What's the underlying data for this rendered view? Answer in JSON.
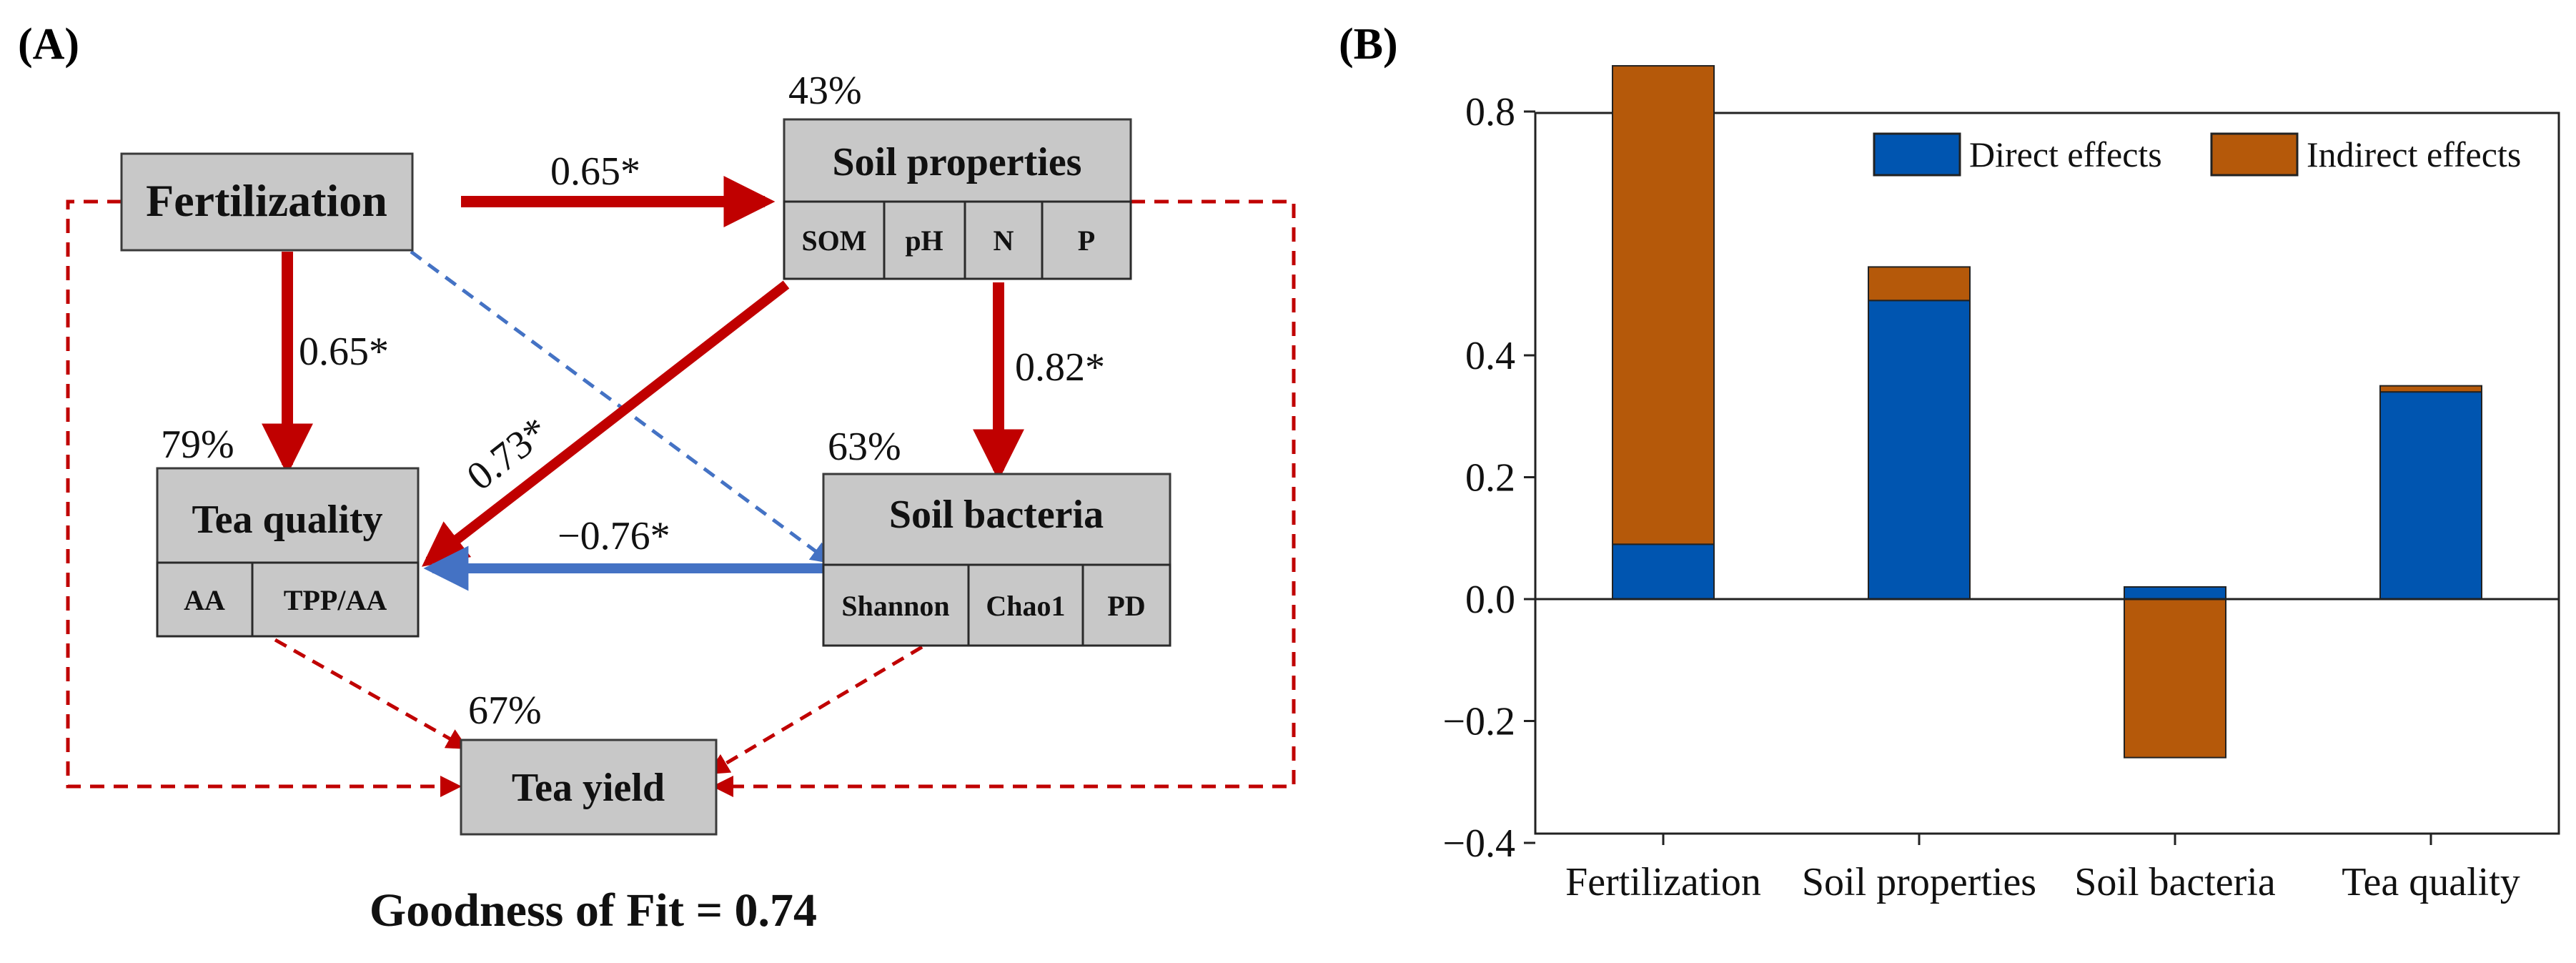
{
  "panels": {
    "a_label": "(A)",
    "b_label": "(B)"
  },
  "diagram": {
    "fertilization": {
      "title": "Fertilization"
    },
    "soil_properties": {
      "title": "Soil properties",
      "r2": "43%",
      "subs": [
        "SOM",
        "pH",
        "N",
        "P"
      ]
    },
    "tea_quality": {
      "title": "Tea quality",
      "r2": "79%",
      "subs": [
        "AA",
        "TPP/AA"
      ]
    },
    "soil_bacteria": {
      "title": "Soil bacteria",
      "r2": "63%",
      "subs": [
        "Shannon",
        "Chao1",
        "PD"
      ]
    },
    "tea_yield": {
      "title": "Tea yield",
      "r2": "67%"
    },
    "paths": {
      "fert_to_soilprop": "0.65*",
      "fert_to_teaquality": "0.65*",
      "soilprop_to_bacteria": "0.82*",
      "soilprop_to_teaquality": "0.73*",
      "bacteria_to_teaquality": "−0.76*"
    },
    "colors": {
      "positive": "#c00000",
      "negative": "#4472c4",
      "nonsig_neg": "#4472c4",
      "nonsig_pos": "#c00000"
    },
    "goodness_of_fit": "Goodness of Fit = 0.74"
  },
  "chart_data": {
    "type": "bar",
    "stacked": true,
    "categories": [
      "Fertilization",
      "Soil properties",
      "Soil bacteria",
      "Tea quality"
    ],
    "series": [
      {
        "name": "Direct effects",
        "values": [
          0.09,
          0.49,
          0.02,
          0.34
        ],
        "color": "#0055b0"
      },
      {
        "name": "Indirect effects",
        "values": [
          0.785,
          0.055,
          -0.26,
          0.01
        ],
        "color": "#b5590a"
      }
    ],
    "ylim": [
      -0.4,
      0.95
    ],
    "yticks": [
      -0.4,
      -0.2,
      0.0,
      0.2,
      0.4,
      0.8
    ],
    "ytick_labels": [
      "−0.4",
      "−0.2",
      "0.0",
      "0.2",
      "0.4",
      "0.8"
    ],
    "legend": "top-right",
    "grid": false,
    "xlabel": "",
    "ylabel": ""
  }
}
